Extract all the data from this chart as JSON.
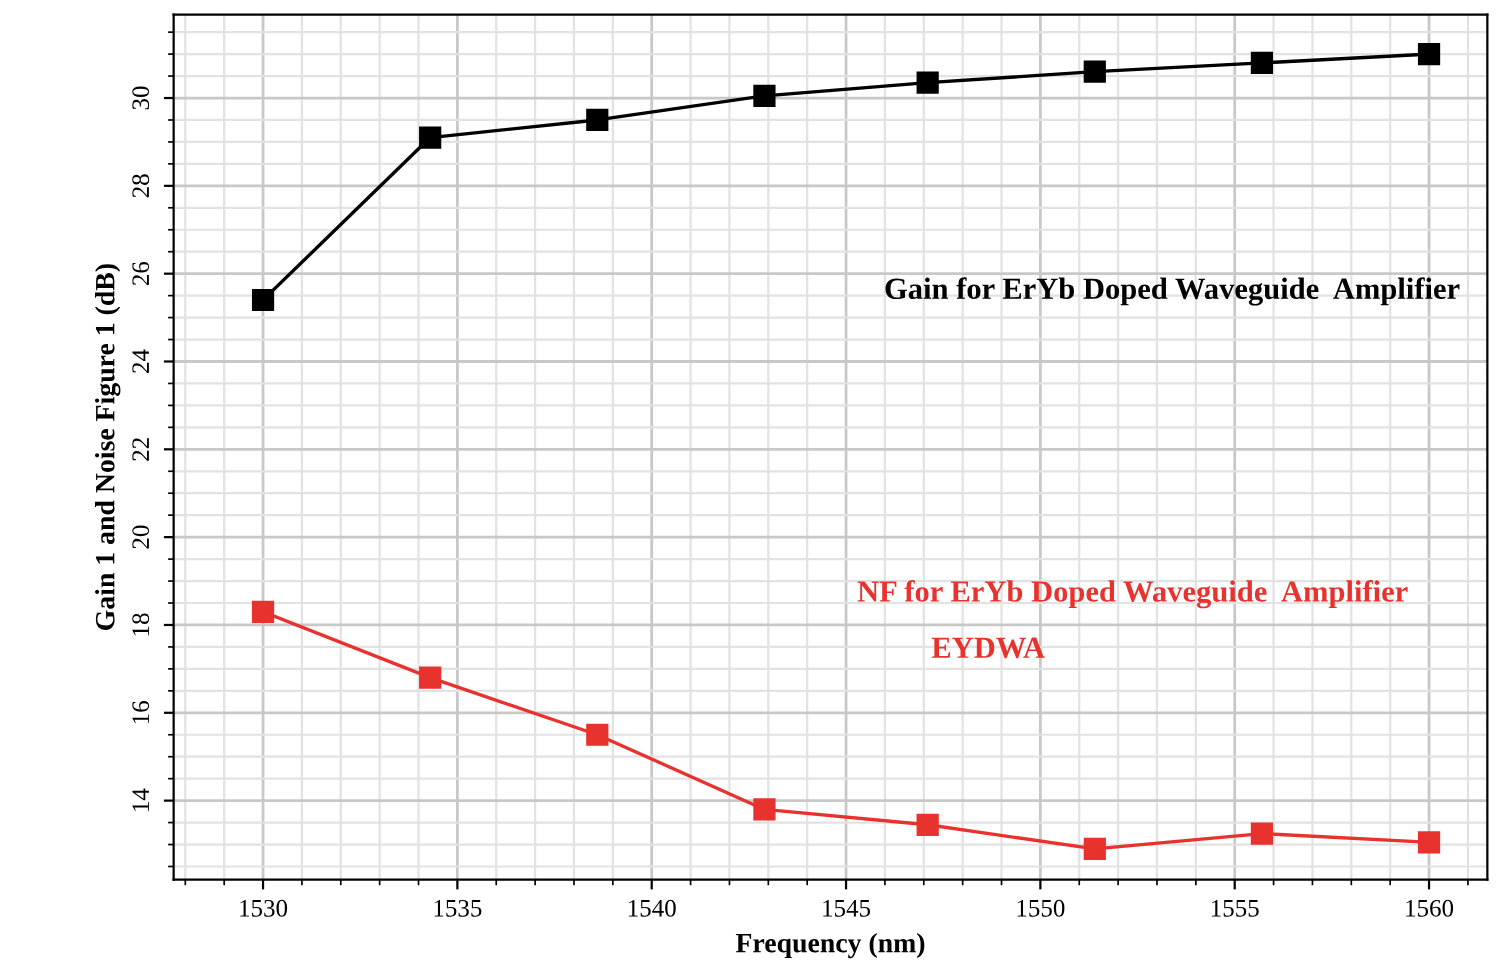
{
  "chart_data": {
    "type": "line",
    "xlabel": "Frequency (nm)",
    "ylabel": "Gain 1 and Noise Figure 1 (dB)",
    "x": [
      1530,
      1534.3,
      1538.6,
      1542.9,
      1547.1,
      1551.4,
      1555.7,
      1560
    ],
    "series": [
      {
        "color": "#000000",
        "values": [
          25.4,
          29.1,
          29.5,
          30.05,
          30.35,
          30.6,
          30.8,
          31.0
        ]
      },
      {
        "color": "#e8322e",
        "values": [
          18.3,
          16.8,
          15.5,
          13.8,
          13.45,
          12.9,
          13.25,
          13.05
        ]
      }
    ],
    "annotations": [
      "Gain for ErYb Doped Waveguide  Amplifier",
      "NF for ErYb Doped Waveguide  Amplifier",
      "EYDWA"
    ],
    "xlim": [
      1527.7,
      1561.5
    ],
    "ylim": [
      12.2,
      31.9
    ],
    "xticks": [
      1530,
      1535,
      1540,
      1545,
      1550,
      1555,
      1560
    ],
    "yticks": [
      14,
      16,
      18,
      20,
      22,
      24,
      26,
      28,
      30
    ],
    "grid": true,
    "marker": "square",
    "line_style": "solid"
  }
}
